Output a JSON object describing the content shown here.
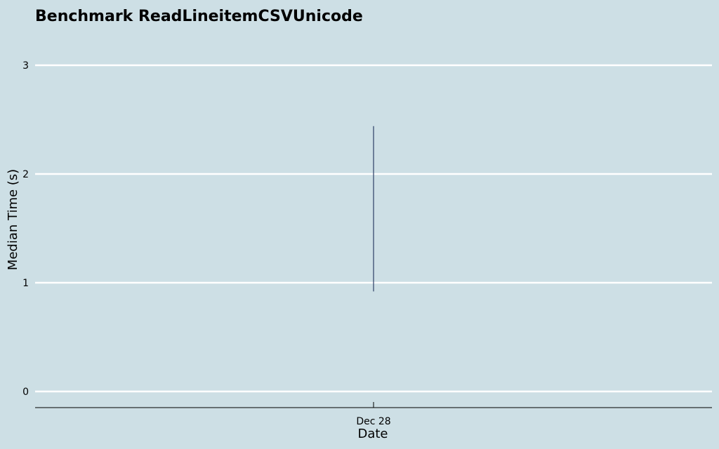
{
  "chart_data": {
    "type": "line",
    "title": "Benchmark ReadLineitemCSVUnicode",
    "xlabel": "Date",
    "ylabel": "Median Time (s)",
    "x_ticks": [
      "Dec 28"
    ],
    "y_ticks": [
      0,
      1,
      2,
      3
    ],
    "ylim": [
      -0.15,
      3.3
    ],
    "grid": true,
    "legend": "none",
    "series": [
      {
        "x": [
          "Dec 28"
        ],
        "low": [
          0.92
        ],
        "high": [
          2.44
        ]
      }
    ],
    "colors": {
      "background": "#cddfe5",
      "grid": "#ffffff",
      "series": "#2c3e66",
      "axis": "#000000"
    }
  }
}
